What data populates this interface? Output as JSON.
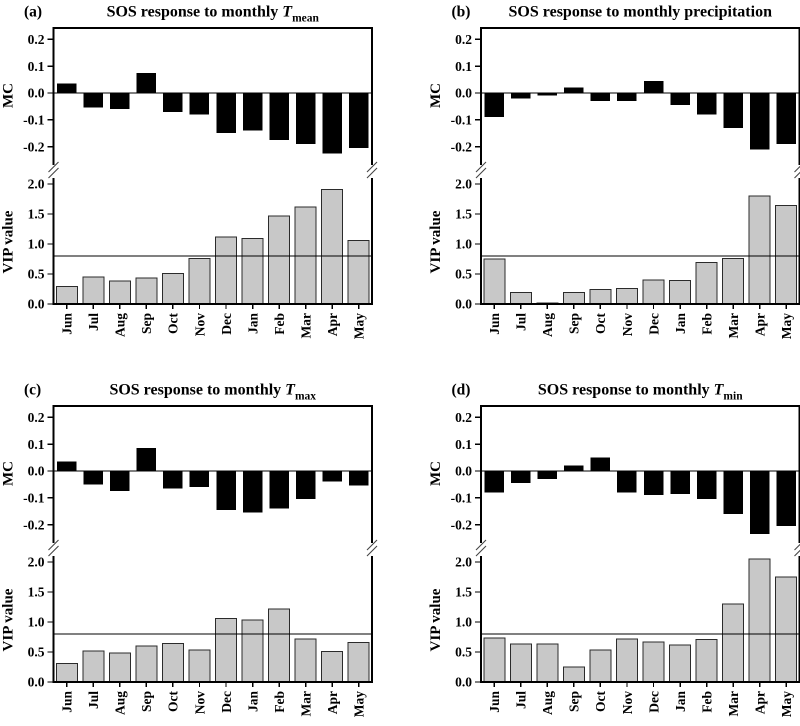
{
  "figure": {
    "background": "#ffffff",
    "axis_color": "#000000",
    "mc_bar_color": "#000000",
    "vip_bar_fill": "#c8c8c8",
    "vip_bar_border": "#2b2b2b",
    "threshold_line_color": "#000000",
    "months": [
      "Jun",
      "Jul",
      "Aug",
      "Sep",
      "Oct",
      "Nov",
      "Dec",
      "Jan",
      "Feb",
      "Mar",
      "Apr",
      "May"
    ]
  },
  "chart_data": [
    {
      "type": "bar",
      "id": "a",
      "panel_label": "(a)",
      "title": {
        "prefix": "SOS response to monthly ",
        "variable": "T",
        "subscript": "mean"
      },
      "categories": [
        "Jun",
        "Jul",
        "Aug",
        "Sep",
        "Oct",
        "Nov",
        "Dec",
        "Jan",
        "Feb",
        "Mar",
        "Apr",
        "May"
      ],
      "axis_break": true,
      "mc": {
        "ylabel": "MC",
        "values": [
          0.035,
          -0.055,
          -0.06,
          0.075,
          -0.07,
          -0.08,
          -0.15,
          -0.14,
          -0.175,
          -0.19,
          -0.225,
          -0.205
        ],
        "tick_labels": [
          "0.2",
          "0.1",
          "0.0",
          "-0.1",
          "-0.2"
        ],
        "ylim": [
          -0.29,
          0.24
        ]
      },
      "vip": {
        "ylabel": "VIP value",
        "values": [
          0.29,
          0.45,
          0.38,
          0.43,
          0.51,
          0.76,
          1.12,
          1.09,
          1.47,
          1.62,
          1.91,
          1.06
        ],
        "tick_labels": [
          "2.0",
          "1.5",
          "1.0",
          "0.5",
          "0.0"
        ],
        "ylim": [
          0,
          2.23
        ],
        "threshold": 0.8
      }
    },
    {
      "type": "bar",
      "id": "b",
      "panel_label": "(b)",
      "title": {
        "prefix": "SOS response to monthly precipitation",
        "variable": "",
        "subscript": ""
      },
      "categories": [
        "Jun",
        "Jul",
        "Aug",
        "Sep",
        "Oct",
        "Nov",
        "Dec",
        "Jan",
        "Feb",
        "Mar",
        "Apr",
        "May"
      ],
      "axis_break": true,
      "mc": {
        "ylabel": "MC",
        "values": [
          -0.09,
          -0.02,
          -0.01,
          0.02,
          -0.03,
          -0.03,
          0.045,
          -0.045,
          -0.08,
          -0.13,
          -0.21,
          -0.19
        ],
        "tick_labels": [
          "0.2",
          "0.1",
          "0.0",
          "-0.1",
          "-0.2"
        ],
        "ylim": [
          -0.29,
          0.24
        ]
      },
      "vip": {
        "ylabel": "VIP value",
        "values": [
          0.75,
          0.19,
          0.02,
          0.19,
          0.24,
          0.26,
          0.4,
          0.39,
          0.69,
          0.76,
          1.8,
          1.64
        ],
        "tick_labels": [
          "2.0",
          "1.5",
          "1.0",
          "0.5",
          "0.0"
        ],
        "ylim": [
          0,
          2.23
        ],
        "threshold": 0.8
      }
    },
    {
      "type": "bar",
      "id": "c",
      "panel_label": "(c)",
      "title": {
        "prefix": "SOS response to monthly ",
        "variable": "T",
        "subscript": "max"
      },
      "categories": [
        "Jun",
        "Jul",
        "Aug",
        "Sep",
        "Oct",
        "Nov",
        "Dec",
        "Jan",
        "Feb",
        "Mar",
        "Apr",
        "May"
      ],
      "axis_break": true,
      "mc": {
        "ylabel": "MC",
        "values": [
          0.035,
          -0.05,
          -0.075,
          0.085,
          -0.065,
          -0.06,
          -0.145,
          -0.155,
          -0.14,
          -0.105,
          -0.04,
          -0.055
        ],
        "tick_labels": [
          "0.2",
          "0.1",
          "0.0",
          "-0.1",
          "-0.2"
        ],
        "ylim": [
          -0.29,
          0.24
        ]
      },
      "vip": {
        "ylabel": "VIP value",
        "values": [
          0.31,
          0.52,
          0.48,
          0.6,
          0.64,
          0.53,
          1.06,
          1.03,
          1.22,
          0.72,
          0.51,
          0.66
        ],
        "tick_labels": [
          "2.0",
          "1.5",
          "1.0",
          "0.5",
          "0.0"
        ],
        "ylim": [
          0,
          2.23
        ],
        "threshold": 0.8
      }
    },
    {
      "type": "bar",
      "id": "d",
      "panel_label": "(d)",
      "title": {
        "prefix": "SOS response to monthly ",
        "variable": "T",
        "subscript": "min"
      },
      "categories": [
        "Jun",
        "Jul",
        "Aug",
        "Sep",
        "Oct",
        "Nov",
        "Dec",
        "Jan",
        "Feb",
        "Mar",
        "Apr",
        "May"
      ],
      "axis_break": true,
      "mc": {
        "ylabel": "MC",
        "values": [
          -0.08,
          -0.045,
          -0.03,
          0.02,
          0.05,
          -0.08,
          -0.09,
          -0.085,
          -0.105,
          -0.16,
          -0.235,
          -0.205
        ],
        "tick_labels": [
          "0.2",
          "0.1",
          "0.0",
          "-0.1",
          "-0.2"
        ],
        "ylim": [
          -0.29,
          0.24
        ]
      },
      "vip": {
        "ylabel": "VIP value",
        "values": [
          0.73,
          0.63,
          0.63,
          0.25,
          0.53,
          0.72,
          0.67,
          0.62,
          0.71,
          1.3,
          2.05,
          1.75
        ],
        "tick_labels": [
          "2.0",
          "1.5",
          "1.0",
          "0.5",
          "0.0"
        ],
        "ylim": [
          0,
          2.23
        ],
        "threshold": 0.8
      }
    }
  ]
}
